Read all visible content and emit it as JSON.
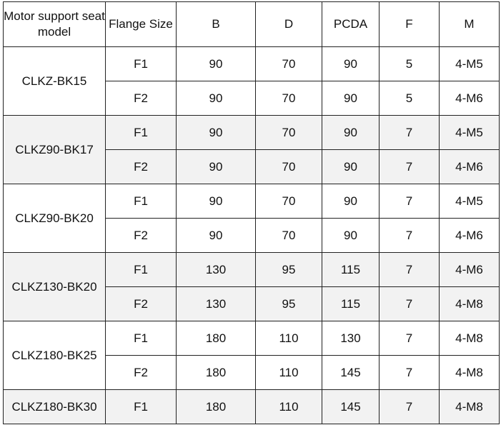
{
  "table": {
    "header": [
      "Motor support seat model",
      "Flange Size",
      "B",
      "D",
      "PCDA",
      "F",
      "M"
    ],
    "groups": [
      {
        "model": "CLKZ-BK15",
        "rows": [
          [
            "F1",
            90,
            70,
            90,
            5,
            "4-M5"
          ],
          [
            "F2",
            90,
            70,
            90,
            5,
            "4-M6"
          ]
        ]
      },
      {
        "model": "CLKZ90-BK17",
        "rows": [
          [
            "F1",
            90,
            70,
            90,
            7,
            "4-M5"
          ],
          [
            "F2",
            90,
            70,
            90,
            7,
            "4-M6"
          ]
        ]
      },
      {
        "model": "CLKZ90-BK20",
        "rows": [
          [
            "F1",
            90,
            70,
            90,
            7,
            "4-M5"
          ],
          [
            "F2",
            90,
            70,
            90,
            7,
            "4-M6"
          ]
        ]
      },
      {
        "model": "CLKZ130-BK20",
        "rows": [
          [
            "F1",
            130,
            95,
            115,
            7,
            "4-M6"
          ],
          [
            "F2",
            130,
            95,
            115,
            7,
            "4-M8"
          ]
        ]
      },
      {
        "model": "CLKZ180-BK25",
        "rows": [
          [
            "F1",
            180,
            110,
            130,
            7,
            "4-M8"
          ],
          [
            "F2",
            180,
            110,
            145,
            7,
            "4-M8"
          ]
        ]
      },
      {
        "model": "CLKZ180-BK30",
        "rows": [
          [
            "F1",
            180,
            110,
            145,
            7,
            "4-M8"
          ]
        ]
      }
    ]
  }
}
